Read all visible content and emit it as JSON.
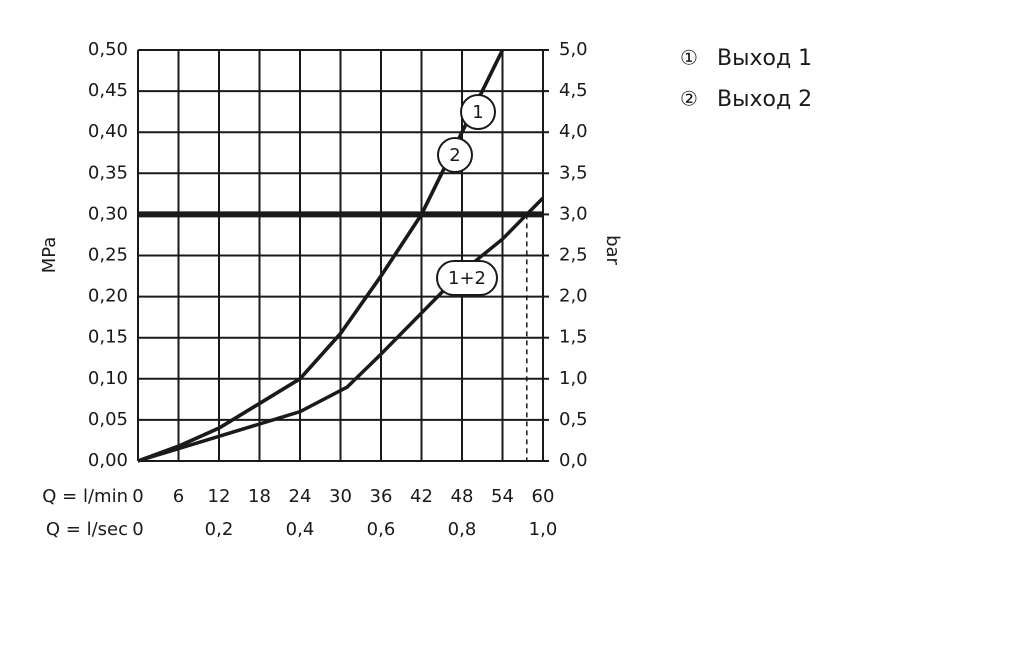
{
  "chart_data": {
    "type": "line",
    "xlabel": "Q = l/min",
    "x2label": "Q = l/sec",
    "ylabel": "MPa",
    "y2label": "bar",
    "xlim": [
      0,
      60
    ],
    "xticks": [
      0,
      6,
      12,
      18,
      24,
      30,
      36,
      42,
      48,
      54,
      60
    ],
    "x2lim": [
      0,
      1
    ],
    "x2ticks": [
      0,
      {
        "value": 0.2,
        "label": "0,2"
      },
      {
        "value": 0.4,
        "label": "0,4"
      },
      {
        "value": 0.6,
        "label": "0,6"
      },
      {
        "value": 0.8,
        "label": "0,8"
      },
      {
        "value": 1.0,
        "label": "1,0"
      }
    ],
    "ylim": [
      0,
      0.5
    ],
    "yticks": [
      {
        "value": 0,
        "label": "0,00"
      },
      {
        "value": 0.05,
        "label": "0,05"
      },
      {
        "value": 0.1,
        "label": "0,10"
      },
      {
        "value": 0.15,
        "label": "0,15"
      },
      {
        "value": 0.2,
        "label": "0,20"
      },
      {
        "value": 0.25,
        "label": "0,25"
      },
      {
        "value": 0.3,
        "label": "0,30"
      },
      {
        "value": 0.35,
        "label": "0,35"
      },
      {
        "value": 0.4,
        "label": "0,40"
      },
      {
        "value": 0.45,
        "label": "0,45"
      },
      {
        "value": 0.5,
        "label": "0,50"
      }
    ],
    "y2lim": [
      0,
      5
    ],
    "y2ticks": [
      {
        "value": 0,
        "label": "0,0"
      },
      {
        "value": 0.5,
        "label": "0,5"
      },
      {
        "value": 1,
        "label": "1,0"
      },
      {
        "value": 1.5,
        "label": "1,5"
      },
      {
        "value": 2,
        "label": "2,0"
      },
      {
        "value": 2.5,
        "label": "2,5"
      },
      {
        "value": 3,
        "label": "3,0"
      },
      {
        "value": 3.5,
        "label": "3,5"
      },
      {
        "value": 4,
        "label": "4,0"
      },
      {
        "value": 4.5,
        "label": "4,5"
      },
      {
        "value": 5,
        "label": "5,0"
      }
    ],
    "grid": true,
    "color": "#1a1a1a",
    "reference_y": 0.3,
    "reference_x": [
      42,
      57.6
    ],
    "series": [
      {
        "name": "Выход 1",
        "symbol": "①",
        "label": "1",
        "x": [
          0,
          6,
          12,
          18,
          24,
          30,
          36,
          42,
          48,
          54
        ],
        "values": [
          0,
          0.018,
          0.04,
          0.07,
          0.1,
          0.155,
          0.225,
          0.3,
          0.4,
          0.5
        ]
      },
      {
        "name": "Выход 2",
        "symbol": "②",
        "label": "2",
        "x": [
          0,
          6,
          12,
          18,
          24,
          30,
          36,
          42,
          48,
          54
        ],
        "values": [
          0,
          0.018,
          0.04,
          0.07,
          0.1,
          0.155,
          0.225,
          0.3,
          0.4,
          0.5
        ]
      },
      {
        "label": "1+2",
        "x": [
          0,
          12,
          24,
          31,
          36,
          42,
          48,
          54,
          57.6,
          60
        ],
        "values": [
          0,
          0.03,
          0.06,
          0.09,
          0.13,
          0.18,
          0.23,
          0.27,
          0.3,
          0.32
        ]
      }
    ]
  }
}
